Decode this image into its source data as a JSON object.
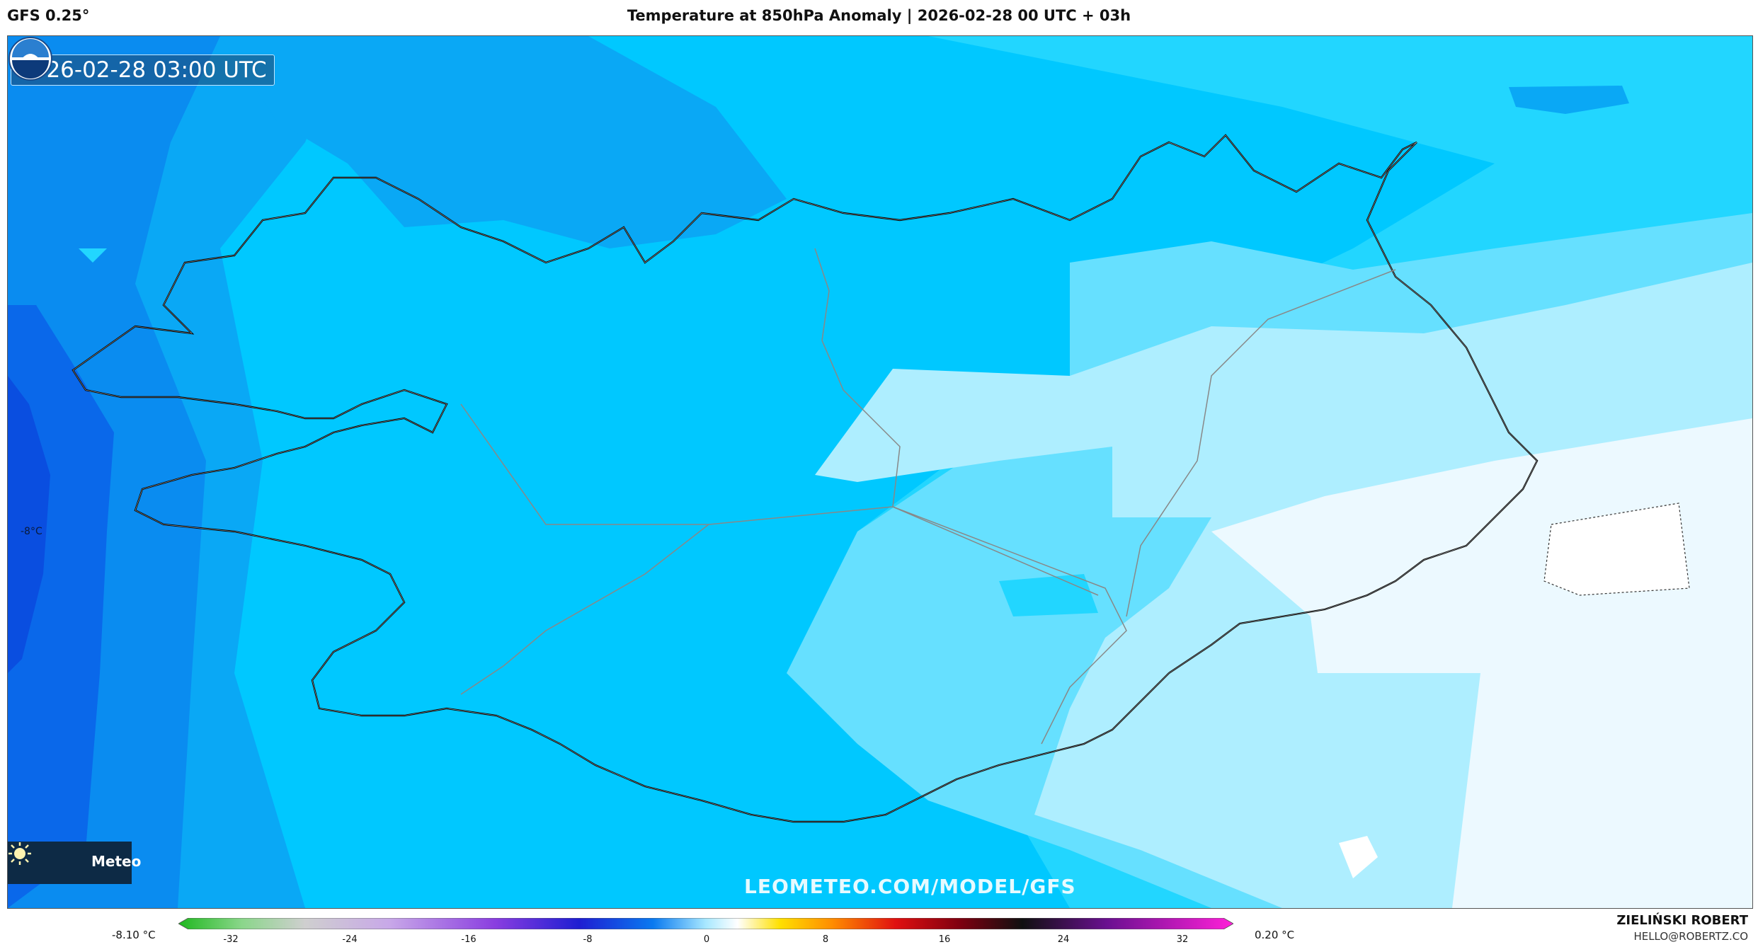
{
  "header": {
    "model": "GFS 0.25°",
    "title": "Temperature at 850hPa Anomaly | 2026-02-28 00 UTC + 03h"
  },
  "map": {
    "valid_time": "2026-02-28 03:00 UTC",
    "value_label": "-8°C",
    "logo_text": "Meteo",
    "watermark": "LEOMETEO.COM/MODEL/GFS",
    "logo_icon": "sun-icon",
    "agency_icon": "noaa-logo-icon"
  },
  "colorbar": {
    "min_label": "-8.10 °C",
    "max_label": "0.20 °C",
    "ticks": [
      "-32",
      "-24",
      "-16",
      "-8",
      "0",
      "8",
      "16",
      "24",
      "32"
    ]
  },
  "credits": {
    "author": "ZIELIŃSKI ROBERT",
    "email": "HELLO@ROBERTZ.CO"
  }
}
